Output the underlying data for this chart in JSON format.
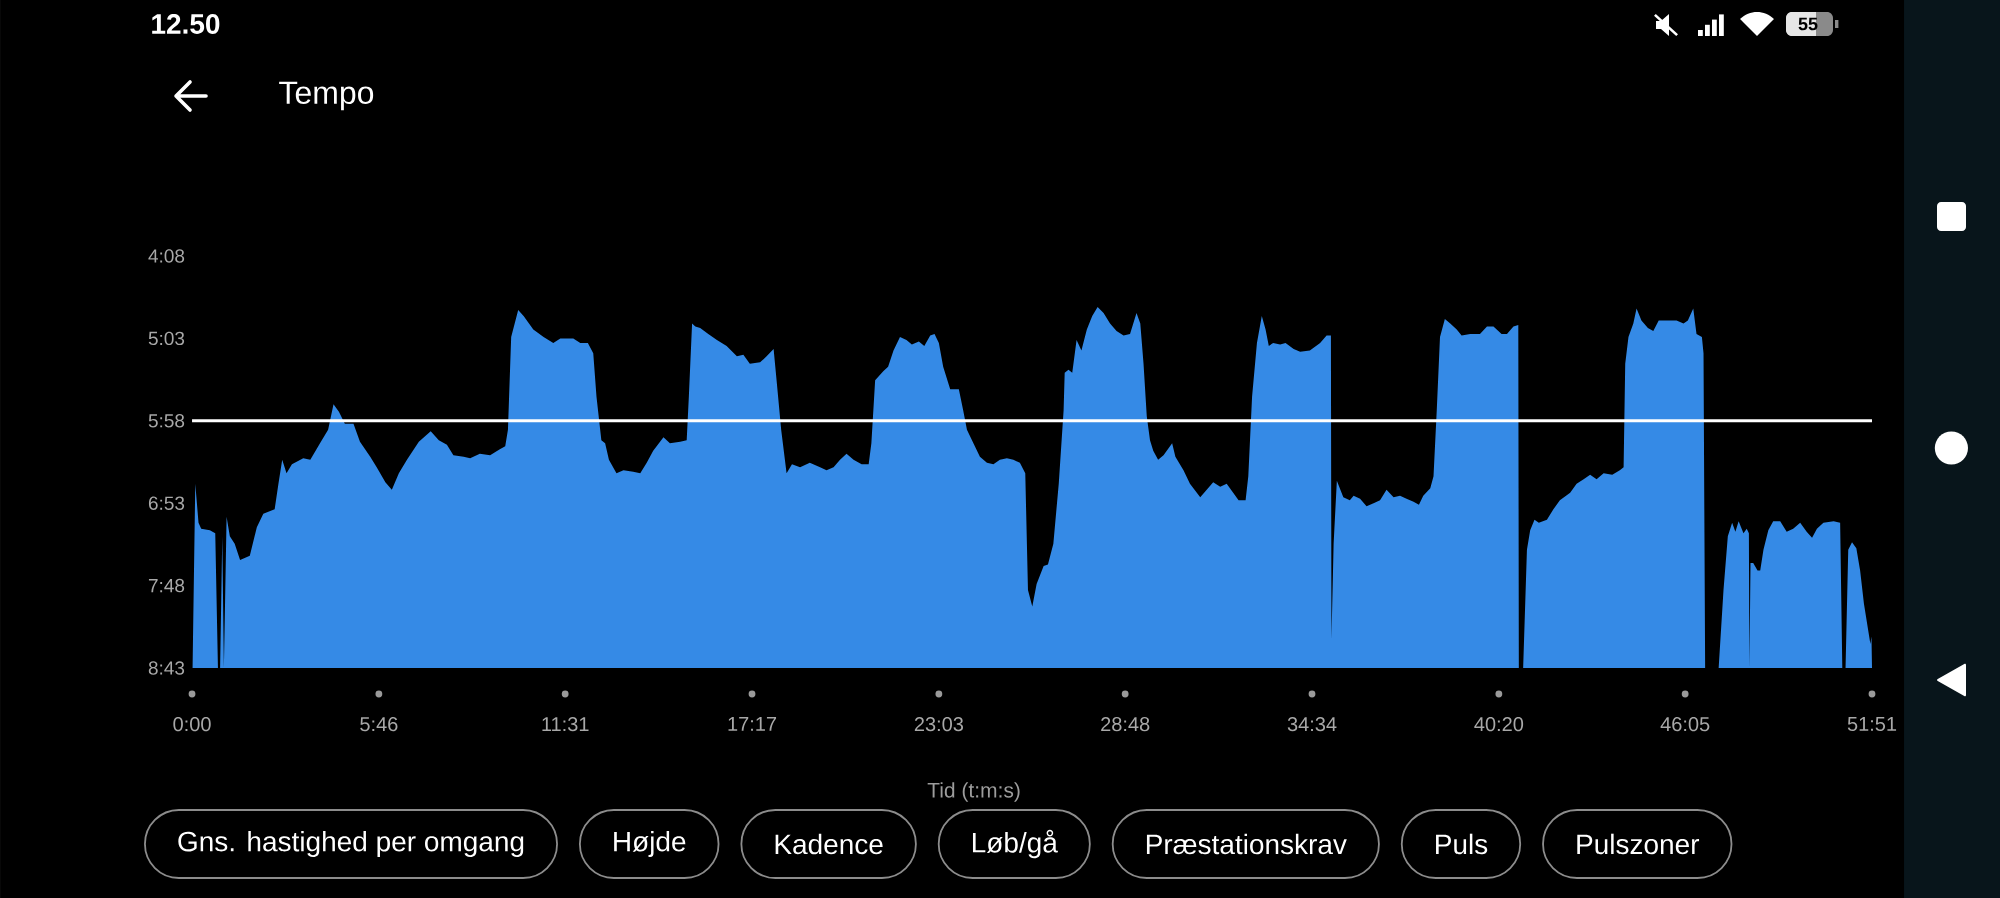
{
  "chart_data": {
    "type": "area",
    "title": "Tempo",
    "xlabel": "Tid (t:m:s)",
    "x": [
      1,
      6,
      12,
      17,
      33,
      43,
      48,
      52,
      56,
      59,
      64,
      70,
      79,
      89,
      107,
      120,
      132,
      153,
      160,
      167,
      175,
      185,
      206,
      219,
      237,
      252,
      262,
      272,
      283,
      299,
      311,
      330,
      342,
      358,
      370,
      383,
      398,
      420,
      442,
      457,
      472,
      484,
      503,
      515,
      533,
      552,
      570,
      580,
      585,
      591,
      604,
      614,
      632,
      651,
      669,
      682,
      706,
      719,
      733,
      743,
      749,
      758,
      765,
      772,
      786,
      799,
      817,
      830,
      842,
      854,
      873,
      885,
      904,
      916,
      920,
      926,
      932,
      941,
      956,
      972,
      990,
      1009,
      1021,
      1033,
      1052,
      1064,
      1077,
      1083,
      1091,
      1101,
      1111,
      1126,
      1144,
      1163,
      1175,
      1188,
      1200,
      1212,
      1225,
      1240,
      1253,
      1258,
      1265,
      1280,
      1289,
      1299,
      1311,
      1323,
      1333,
      1346,
      1356,
      1367,
      1375,
      1383,
      1391,
      1404,
      1420,
      1428,
      1435,
      1447,
      1459,
      1472,
      1484,
      1496,
      1509,
      1521,
      1533,
      1543,
      1548,
      1556,
      1564,
      1577,
      1585,
      1595,
      1605,
      1614,
      1616,
      1623,
      1630,
      1638,
      1647,
      1657,
      1667,
      1677,
      1688,
      1700,
      1712,
      1725,
      1737,
      1743,
      1749,
      1756,
      1762,
      1768,
      1774,
      1780,
      1789,
      1799,
      1815,
      1821,
      1836,
      1848,
      1867,
      1879,
      1891,
      1904,
      1916,
      1928,
      1938,
      1951,
      1956,
      1963,
      1972,
      1981,
      1988,
      1994,
      2002,
      2015,
      2025,
      2040,
      2052,
      2070,
      2089,
      2101,
      2109,
      2110,
      2114,
      2120,
      2132,
      2144,
      2151,
      2163,
      2175,
      2188,
      2200,
      2212,
      2225,
      2237,
      2249,
      2262,
      2272,
      2280,
      2293,
      2299,
      2305,
      2311,
      2320,
      2330,
      2342,
      2351,
      2367,
      2385,
      2398,
      2410,
      2425,
      2435,
      2447,
      2456,
      2457,
      2465,
      2472,
      2478,
      2486,
      2494,
      2509,
      2521,
      2533,
      2552,
      2564,
      2577,
      2589,
      2601,
      2614,
      2630,
      2644,
      2651,
      2654,
      2660,
      2669,
      2675,
      2684,
      2696,
      2706,
      2716,
      2731,
      2749,
      2762,
      2770,
      2780,
      2786,
      2796,
      2799,
      2802,
      2827,
      2836,
      2844,
      2852,
      2858,
      2864,
      2873,
      2879,
      2883,
      2884,
      2886,
      2891,
      2899,
      2904,
      2910,
      2919,
      2928,
      2941,
      2953,
      2965,
      2978,
      2990,
      3000,
      3009,
      3021,
      3040,
      3052,
      3056,
      3062,
      3067,
      3074,
      3082,
      3089,
      3096,
      3104,
      3108,
      3110,
      3111
    ],
    "values": [
      523,
      400,
      426,
      430,
      431,
      433,
      523,
      523,
      435,
      523,
      422,
      435,
      440,
      451,
      448,
      429,
      420,
      417,
      400,
      384,
      393,
      387,
      383,
      384,
      373,
      364,
      347,
      352,
      360,
      360,
      372,
      382,
      389,
      399,
      404,
      393,
      384,
      372,
      365,
      371,
      374,
      381,
      382,
      383,
      380,
      381,
      377,
      375,
      364,
      302,
      284,
      288,
      297,
      302,
      306,
      303,
      303,
      306,
      306,
      313,
      342,
      371,
      373,
      384,
      393,
      391,
      392,
      393,
      386,
      378,
      369,
      373,
      372,
      371,
      342,
      293,
      295,
      296,
      300,
      304,
      308,
      315,
      314,
      320,
      319,
      315,
      310,
      333,
      364,
      393,
      387,
      389,
      386,
      389,
      391,
      389,
      384,
      380,
      384,
      387,
      387,
      373,
      331,
      325,
      322,
      311,
      302,
      304,
      307,
      305,
      308,
      301,
      300,
      306,
      322,
      337,
      337,
      351,
      364,
      373,
      382,
      386,
      387,
      384,
      383,
      384,
      386,
      393,
      471,
      482,
      467,
      455,
      454,
      440,
      400,
      351,
      326,
      324,
      326,
      304,
      311,
      297,
      288,
      282,
      286,
      293,
      298,
      301,
      300,
      293,
      286,
      293,
      320,
      355,
      371,
      378,
      384,
      381,
      373,
      382,
      391,
      400,
      409,
      404,
      399,
      402,
      400,
      406,
      411,
      411,
      395,
      342,
      306,
      288,
      297,
      308,
      306,
      307,
      306,
      310,
      312,
      311,
      306,
      301,
      301,
      504,
      440,
      398,
      409,
      411,
      408,
      410,
      415,
      413,
      411,
      404,
      409,
      408,
      410,
      412,
      414,
      408,
      403,
      395,
      351,
      302,
      290,
      293,
      297,
      301,
      300,
      300,
      295,
      295,
      300,
      300,
      295,
      294,
      523,
      523,
      444,
      431,
      424,
      426,
      424,
      417,
      411,
      406,
      400,
      397,
      394,
      397,
      393,
      394,
      391,
      389,
      320,
      302,
      293,
      283,
      291,
      296,
      298,
      291,
      291,
      291,
      293,
      291,
      283,
      300,
      302,
      313,
      523,
      523,
      471,
      435,
      426,
      432,
      425,
      433,
      430,
      433,
      523,
      453,
      453,
      458,
      458,
      444,
      431,
      425,
      425,
      432,
      430,
      426,
      432,
      436,
      430,
      426,
      425,
      426,
      523,
      523,
      444,
      439,
      443,
      458,
      480,
      498,
      507,
      502,
      523
    ],
    "color": "#358ae6",
    "xlim": [
      0,
      3111
    ],
    "ylim": [
      523,
      248
    ],
    "xticks": [
      {
        "value": 0,
        "label": "0:00"
      },
      {
        "value": 346,
        "label": "5:46"
      },
      {
        "value": 691,
        "label": "11:31"
      },
      {
        "value": 1037,
        "label": "17:17"
      },
      {
        "value": 1383,
        "label": "23:03"
      },
      {
        "value": 1728,
        "label": "28:48"
      },
      {
        "value": 2074,
        "label": "34:34"
      },
      {
        "value": 2420,
        "label": "40:20"
      },
      {
        "value": 2765,
        "label": "46:05"
      },
      {
        "value": 3111,
        "label": "51:51"
      }
    ],
    "yticks": [
      {
        "value": 248,
        "label": "4:08"
      },
      {
        "value": 303,
        "label": "5:03"
      },
      {
        "value": 358,
        "label": "5:58"
      },
      {
        "value": 413,
        "label": "6:53"
      },
      {
        "value": 468,
        "label": "7:48"
      },
      {
        "value": 523,
        "label": "8:43"
      }
    ],
    "ref_lines": [
      {
        "axis": "y",
        "value": 358,
        "color": "#ffffff"
      }
    ],
    "annotations": [
      "12.50",
      "55",
      "Gns. hastighed per omgang",
      "Højde",
      "Kadence",
      "Løb/gå",
      "Præstationskrav",
      "Puls",
      "Pulszoner"
    ]
  }
}
